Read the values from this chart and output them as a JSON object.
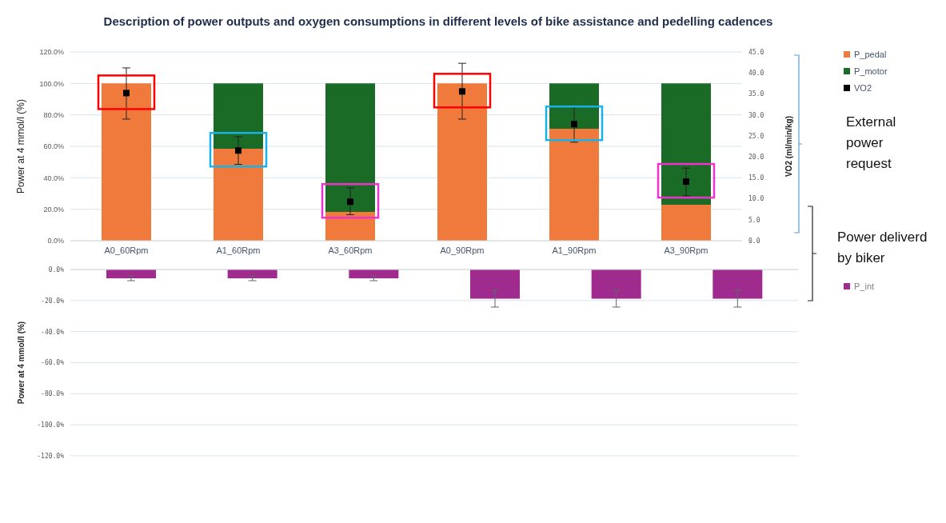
{
  "chart_data": [
    {
      "type": "bar",
      "title": "Description of power outputs and oxygen consumptions in different levels of bike assistance and pedelling cadences",
      "stacked": true,
      "categories": [
        "A0_60Rpm",
        "A1_60Rpm",
        "A3_60Rpm",
        "A0_90Rpm",
        "A1_90Rpm",
        "A3_90Rpm"
      ],
      "series": [
        {
          "name": "P_pedal",
          "color": "#ef7a3c",
          "values": [
            100,
            58.5,
            18.3,
            100,
            71.2,
            22.9
          ]
        },
        {
          "name": "P_motor",
          "color": "#1a6b25",
          "values": [
            0,
            41.5,
            81.7,
            0,
            28.8,
            77.1
          ]
        },
        {
          "name": "VO2",
          "type": "scatter",
          "axis": "y2",
          "marker": "square",
          "color": "#000000",
          "values": [
            35.2,
            21.5,
            9.3,
            35.6,
            27.8,
            14.1
          ],
          "errors": [
            [
              29.0,
              41.2
            ],
            [
              18.2,
              24.8
            ],
            [
              6.2,
              12.6
            ],
            [
              29.0,
              42.3
            ],
            [
              23.5,
              31.9
            ],
            [
              10.7,
              17.3
            ]
          ]
        }
      ],
      "ylabel": "Power at 4 mmol/l (%)",
      "y2label": "VO2 (ml/min/kg)",
      "ylim": [
        0,
        120
      ],
      "yticks": [
        {
          "value": 0,
          "label": "0.0%"
        },
        {
          "value": 20,
          "label": "20.0%"
        },
        {
          "value": 40,
          "label": "40.0%"
        },
        {
          "value": 60,
          "label": "60.0%"
        },
        {
          "value": 80,
          "label": "80.0%"
        },
        {
          "value": 100,
          "label": "100.0%"
        },
        {
          "value": 120,
          "label": "120.0%"
        }
      ],
      "y2lim": [
        0,
        45
      ],
      "y2ticks": [
        {
          "value": 0,
          "label": "0.0"
        },
        {
          "value": 5,
          "label": "5.0"
        },
        {
          "value": 10,
          "label": "10.0"
        },
        {
          "value": 15,
          "label": "15.0"
        },
        {
          "value": 20,
          "label": "20.0"
        },
        {
          "value": 25,
          "label": "25.0"
        },
        {
          "value": 30,
          "label": "30.0"
        },
        {
          "value": 35,
          "label": "35.0"
        },
        {
          "value": 40,
          "label": "40.0"
        },
        {
          "value": 45,
          "label": "45.0"
        }
      ],
      "grid": "y",
      "legend": "top right",
      "annotations": [
        "External power request"
      ]
    },
    {
      "type": "bar",
      "categories": [
        null,
        null,
        null,
        null,
        null,
        null
      ],
      "series": [
        {
          "name": "P_int",
          "color": "#a02b8f",
          "values": [
            -5.7,
            -5.7,
            -5.7,
            -18.8,
            -18.8,
            -18.8
          ],
          "errors": [
            1.5,
            1.5,
            1.5,
            5.4,
            5.4,
            5.4
          ]
        }
      ],
      "ylabel": "Power at 4 mmol/l (%)",
      "ylim": [
        -120,
        0
      ],
      "yticks": [
        {
          "value": -120,
          "label": "-120.0%"
        },
        {
          "value": -100,
          "label": "-100.0%"
        },
        {
          "value": -80,
          "label": "-80.0%"
        },
        {
          "value": -60,
          "label": "-60.0%"
        },
        {
          "value": -40,
          "label": "-40.0%"
        },
        {
          "value": -20,
          "label": "-20.0%"
        },
        {
          "value": 0,
          "label": "0.0%"
        }
      ],
      "grid": "y",
      "legend": "right",
      "annotations": [
        "Power deliverd by biker"
      ]
    }
  ]
}
